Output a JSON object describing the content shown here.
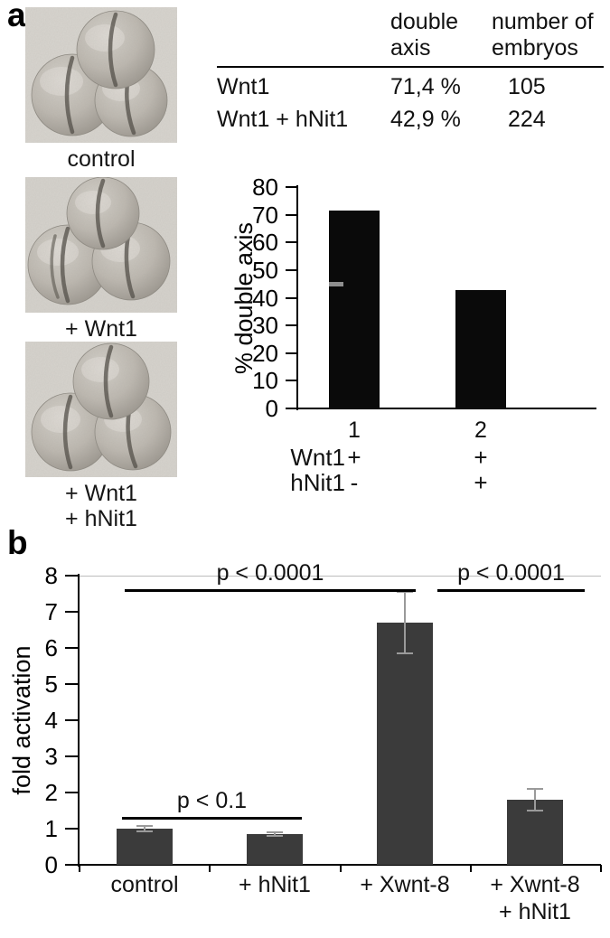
{
  "figure": {
    "panel_a_label": "a",
    "panel_b_label": "b"
  },
  "panel_a": {
    "photos": [
      {
        "caption_lines": [
          "control"
        ]
      },
      {
        "caption_lines": [
          "+ Wnt1"
        ]
      },
      {
        "caption_lines": [
          "+ Wnt1",
          "+ hNit1"
        ]
      }
    ],
    "table": {
      "headers": [
        {
          "lines": [
            "double",
            "axis"
          ]
        },
        {
          "lines": [
            "number of",
            "embryos"
          ]
        }
      ],
      "rows": [
        {
          "condition": "Wnt1",
          "double_axis": "71,4 %",
          "n_embryos": "105"
        },
        {
          "condition": "Wnt1 + hNit1",
          "double_axis": "42,9 %",
          "n_embryos": "224"
        }
      ]
    }
  },
  "chart_data": [
    {
      "type": "bar",
      "panel": "a",
      "title": "",
      "ylabel": "% double axis",
      "ylim": [
        0,
        80
      ],
      "yticks": [
        0,
        10,
        20,
        30,
        40,
        50,
        60,
        70,
        80
      ],
      "categories": [
        "1",
        "2"
      ],
      "values": [
        71.4,
        42.9
      ],
      "bar_color": "#0a0a0a",
      "gray_mark": {
        "bar_index": 0,
        "value": 45
      },
      "condition_rows": [
        {
          "label": "Wnt1",
          "marks": [
            "+",
            "+"
          ]
        },
        {
          "label": "hNit1",
          "marks": [
            "-",
            "+"
          ]
        }
      ]
    },
    {
      "type": "bar",
      "panel": "b",
      "title": "",
      "ylabel": "fold activation",
      "ylim": [
        0,
        8
      ],
      "yticks": [
        0,
        1,
        2,
        3,
        4,
        5,
        6,
        7,
        8
      ],
      "categories": [
        "control",
        "+ hNit1",
        "+ Xwnt-8",
        "+ Xwnt-8\n+ hNit1"
      ],
      "values": [
        1.0,
        0.85,
        6.7,
        1.8
      ],
      "errors": [
        0.07,
        0.05,
        0.85,
        0.3
      ],
      "bar_color": "#3b3b3b",
      "significance": [
        {
          "label": "p < 0.0001",
          "from": 0,
          "to": 2,
          "line_y": 7.6
        },
        {
          "label": "p < 0.0001",
          "from": 2,
          "to": 3,
          "line_y": 7.6
        },
        {
          "label": "p < 0.1",
          "from": 0,
          "to": 1,
          "line_y": 1.3
        }
      ]
    }
  ]
}
